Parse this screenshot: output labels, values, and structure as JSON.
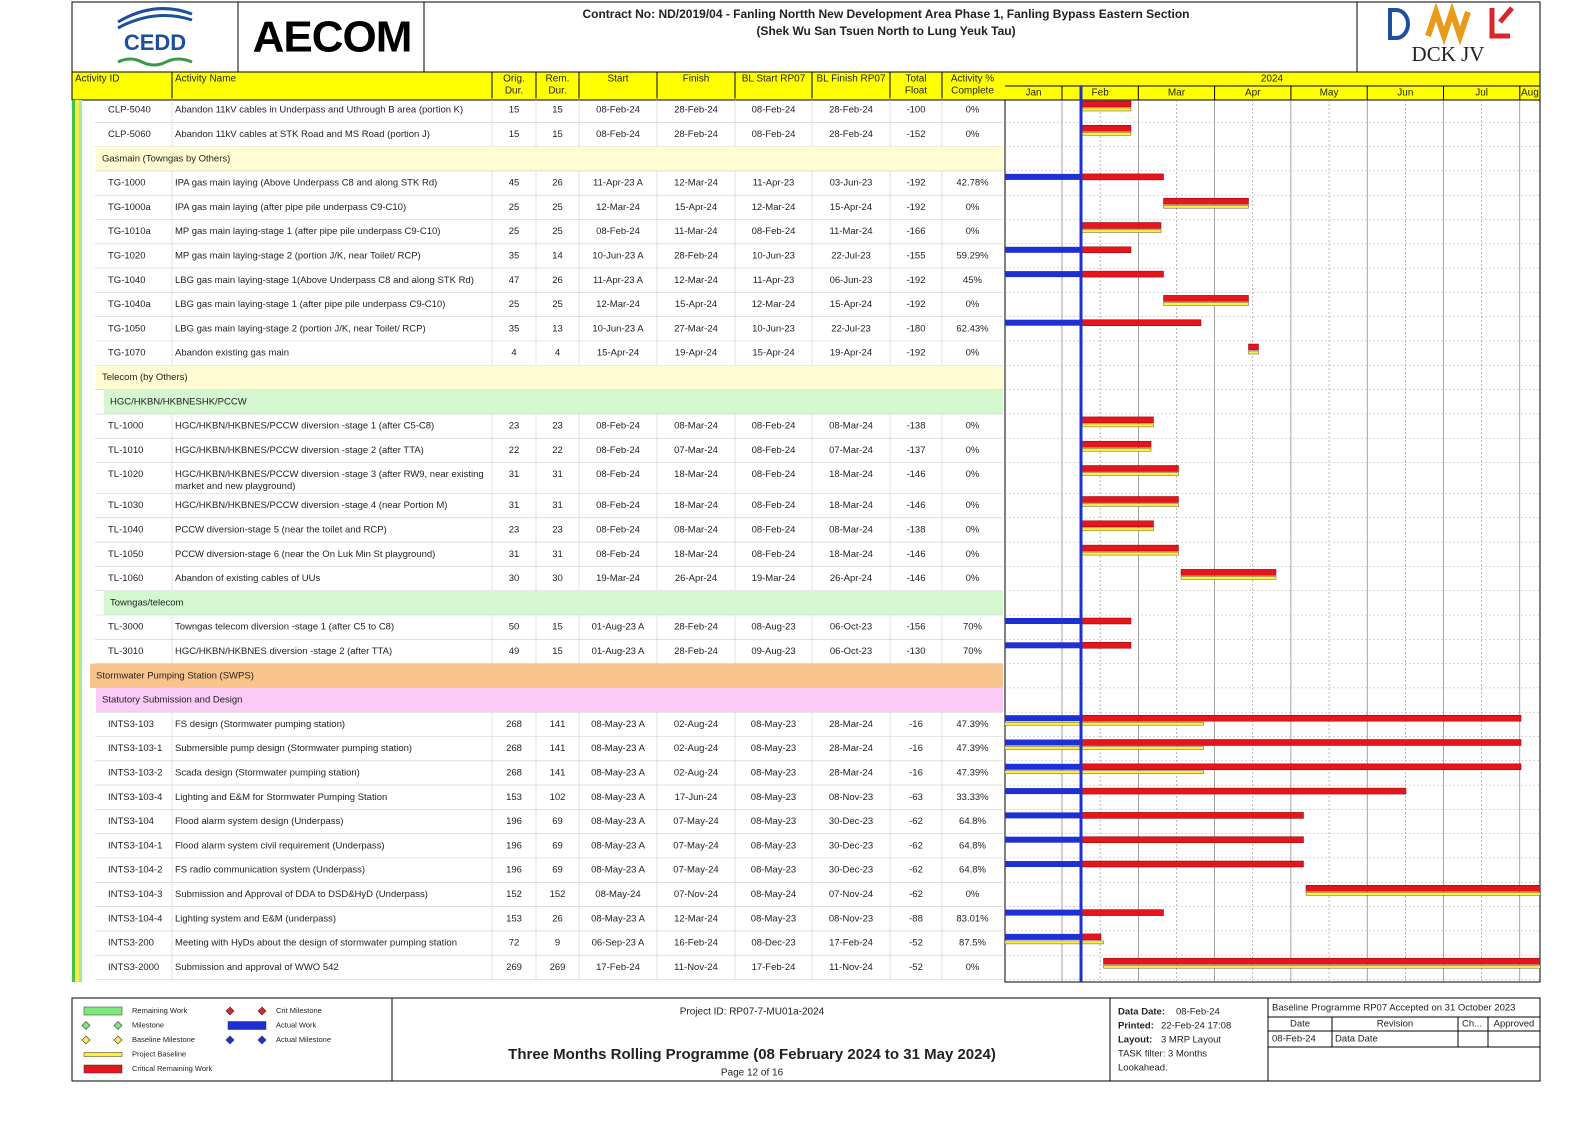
{
  "header": {
    "logo_left": "CEDD",
    "logo_mid": "AECOM",
    "title_line1": "Contract No: ND/2019/04 - Fanling Nortth New Development Area Phase 1, Fanling Bypass Eastern Section",
    "title_line2": "(Shek Wu San Tsuen North to Lung Yeuk Tau)",
    "logo_right": "DCK JV"
  },
  "table": {
    "columns": [
      [
        "Activity ID"
      ],
      [
        "Activity Name"
      ],
      [
        "Orig.",
        "Dur."
      ],
      [
        "Rem.",
        "Dur."
      ],
      [
        "Start"
      ],
      [
        "Finish"
      ],
      [
        "BL Start RP07"
      ],
      [
        "BL Finish RP07"
      ],
      [
        "Total",
        "Float"
      ],
      [
        "Activity %",
        "Complete"
      ]
    ],
    "rows": [
      {
        "cells": [
          "CLP-5040",
          "Abandon 11kV cables in Underpass and Uthrough B area (portion K)",
          "15",
          "15",
          "08-Feb-24",
          "28-Feb-24",
          "08-Feb-24",
          "28-Feb-24",
          "-100",
          "0%"
        ]
      },
      {
        "cells": [
          "CLP-5060",
          "Abandon 11kV cables at STK Road and MS Road (portion J)",
          "15",
          "15",
          "08-Feb-24",
          "28-Feb-24",
          "08-Feb-24",
          "28-Feb-24",
          "-152",
          "0%"
        ]
      },
      {
        "group": "Gasmain (Towngas by Others)",
        "color": "#fffbd2"
      },
      {
        "cells": [
          "TG-1000",
          "IPA gas main laying (Above Underpass C8 and along STK Rd)",
          "45",
          "26",
          "11-Apr-23 A",
          "12-Mar-24",
          "11-Apr-23",
          "03-Jun-23",
          "-192",
          "42.78%"
        ]
      },
      {
        "cells": [
          "TG-1000a",
          "IPA gas main laying (after pipe pile underpass C9-C10)",
          "25",
          "25",
          "12-Mar-24",
          "15-Apr-24",
          "12-Mar-24",
          "15-Apr-24",
          "-192",
          "0%"
        ]
      },
      {
        "cells": [
          "TG-1010a",
          "MP gas main laying-stage 1 (after pipe pile underpass C9-C10)",
          "25",
          "25",
          "08-Feb-24",
          "11-Mar-24",
          "08-Feb-24",
          "11-Mar-24",
          "-166",
          "0%"
        ]
      },
      {
        "cells": [
          "TG-1020",
          "MP gas main laying-stage 2 (portion J/K, near Toilet/ RCP)",
          "35",
          "14",
          "10-Jun-23 A",
          "28-Feb-24",
          "10-Jun-23",
          "22-Jul-23",
          "-155",
          "59.29%"
        ]
      },
      {
        "cells": [
          "TG-1040",
          "LBG gas main laying-stage 1(Above Underpass C8 and along STK Rd)",
          "47",
          "26",
          "11-Apr-23 A",
          "12-Mar-24",
          "11-Apr-23",
          "06-Jun-23",
          "-192",
          "45%"
        ]
      },
      {
        "cells": [
          "TG-1040a",
          "LBG gas main laying-stage 1 (after pipe pile underpass C9-C10)",
          "25",
          "25",
          "12-Mar-24",
          "15-Apr-24",
          "12-Mar-24",
          "15-Apr-24",
          "-192",
          "0%"
        ]
      },
      {
        "cells": [
          "TG-1050",
          "LBG gas main laying-stage 2 (portion J/K, near Toilet/ RCP)",
          "35",
          "13",
          "10-Jun-23 A",
          "27-Mar-24",
          "10-Jun-23",
          "22-Jul-23",
          "-180",
          "62.43%"
        ]
      },
      {
        "cells": [
          "TG-1070",
          "Abandon existing gas main",
          "4",
          "4",
          "15-Apr-24",
          "19-Apr-24",
          "15-Apr-24",
          "19-Apr-24",
          "-192",
          "0%"
        ]
      },
      {
        "group": "Telecom (by Others)",
        "color": "#fffbd2"
      },
      {
        "group": "HGC/HKBN/HKBNESHK/PCCW",
        "color": "#d4f7d0"
      },
      {
        "cells": [
          "TL-1000",
          "HGC/HKBN/HKBNES/PCCW diversion -stage 1 (after C5-C8)",
          "23",
          "23",
          "08-Feb-24",
          "08-Mar-24",
          "08-Feb-24",
          "08-Mar-24",
          "-138",
          "0%"
        ]
      },
      {
        "cells": [
          "TL-1010",
          "HGC/HKBN/HKBNES/PCCW diversion -stage 2 (after TTA)",
          "22",
          "22",
          "08-Feb-24",
          "07-Mar-24",
          "08-Feb-24",
          "07-Mar-24",
          "-137",
          "0%"
        ]
      },
      {
        "cells": [
          "TL-1020",
          [
            "HGC/HKBN/HKBNES/PCCW diversion -stage 3 (after RW9, near existing",
            "market and new playground)"
          ],
          "31",
          "31",
          "08-Feb-24",
          "18-Mar-24",
          "08-Feb-24",
          "18-Mar-24",
          "-146",
          "0%"
        ]
      },
      {
        "cells": [
          "TL-1030",
          "HGC/HKBN/HKBNES/PCCW diversion -stage 4 (near Portion M)",
          "31",
          "31",
          "08-Feb-24",
          "18-Mar-24",
          "08-Feb-24",
          "18-Mar-24",
          "-146",
          "0%"
        ]
      },
      {
        "cells": [
          "TL-1040",
          "PCCW diversion-stage 5 (near the toilet and RCP)",
          "23",
          "23",
          "08-Feb-24",
          "08-Mar-24",
          "08-Feb-24",
          "08-Mar-24",
          "-138",
          "0%"
        ]
      },
      {
        "cells": [
          "TL-1050",
          "PCCW diversion-stage 6 (near the On Luk Min St playground)",
          "31",
          "31",
          "08-Feb-24",
          "18-Mar-24",
          "08-Feb-24",
          "18-Mar-24",
          "-146",
          "0%"
        ]
      },
      {
        "cells": [
          "TL-1060",
          "Abandon of existing cables of UUs",
          "30",
          "30",
          "19-Mar-24",
          "26-Apr-24",
          "19-Mar-24",
          "26-Apr-24",
          "-146",
          "0%"
        ]
      },
      {
        "group": "Towngas/telecom",
        "color": "#d4f7d0"
      },
      {
        "cells": [
          "TL-3000",
          "Towngas telecom diversion -stage 1 (after C5 to C8)",
          "50",
          "15",
          "01-Aug-23 A",
          "28-Feb-24",
          "08-Aug-23",
          "06-Oct-23",
          "-156",
          "70%"
        ]
      },
      {
        "cells": [
          "TL-3010",
          "HGC/HKBN/HKBNES diversion -stage 2 (after TTA)",
          "49",
          "15",
          "01-Aug-23 A",
          "28-Feb-24",
          "09-Aug-23",
          "06-Oct-23",
          "-130",
          "70%"
        ]
      },
      {
        "group": "Stormwater Pumping Station (SWPS)",
        "color": "#f9c48c"
      },
      {
        "group": "Statutory Submission and Design",
        "color": "#f9cbf6"
      },
      {
        "cells": [
          "INTS3-103",
          "FS design (Stormwater pumping station)",
          "268",
          "141",
          "08-May-23 A",
          "02-Aug-24",
          "08-May-23",
          "28-Mar-24",
          "-16",
          "47.39%"
        ]
      },
      {
        "cells": [
          "INTS3-103-1",
          "Submersible pump design (Stormwater pumping station)",
          "268",
          "141",
          "08-May-23 A",
          "02-Aug-24",
          "08-May-23",
          "28-Mar-24",
          "-16",
          "47.39%"
        ]
      },
      {
        "cells": [
          "INTS3-103-2",
          "Scada design (Stormwater pumping station)",
          "268",
          "141",
          "08-May-23 A",
          "02-Aug-24",
          "08-May-23",
          "28-Mar-24",
          "-16",
          "47.39%"
        ]
      },
      {
        "cells": [
          "INTS3-103-4",
          "Lighting and E&M for Stormwater Pumping Station",
          "153",
          "102",
          "08-May-23 A",
          "17-Jun-24",
          "08-May-23",
          "08-Nov-23",
          "-63",
          "33.33%"
        ]
      },
      {
        "cells": [
          "INTS3-104",
          "Flood alarm system design (Underpass)",
          "196",
          "69",
          "08-May-23 A",
          "07-May-24",
          "08-May-23",
          "30-Dec-23",
          "-62",
          "64.8%"
        ]
      },
      {
        "cells": [
          "INTS3-104-1",
          "Flood alarm system civil requirement (Underpass)",
          "196",
          "69",
          "08-May-23 A",
          "07-May-24",
          "08-May-23",
          "30-Dec-23",
          "-62",
          "64.8%"
        ]
      },
      {
        "cells": [
          "INTS3-104-2",
          "FS radio communication system (Underpass)",
          "196",
          "69",
          "08-May-23 A",
          "07-May-24",
          "08-May-23",
          "30-Dec-23",
          "-62",
          "64.8%"
        ]
      },
      {
        "cells": [
          "INTS3-104-3",
          "Submission and Approval of DDA to DSD&HyD (Underpass)",
          "152",
          "152",
          "08-May-24",
          "07-Nov-24",
          "08-May-24",
          "07-Nov-24",
          "-62",
          "0%"
        ]
      },
      {
        "cells": [
          "INTS3-104-4",
          "Lighting system and E&M (underpass)",
          "153",
          "26",
          "08-May-23 A",
          "12-Mar-24",
          "08-May-23",
          "08-Nov-23",
          "-88",
          "83.01%"
        ]
      },
      {
        "cells": [
          "INTS3-200",
          "Meeting with HyDs about the design of stormwater pumping station",
          "72",
          "9",
          "06-Sep-23 A",
          "16-Feb-24",
          "08-Dec-23",
          "17-Feb-24",
          "-52",
          "87.5%"
        ]
      },
      {
        "cells": [
          "INTS3-2000",
          "Submission and approval of WWO 542",
          "269",
          "269",
          "17-Feb-24",
          "11-Nov-24",
          "17-Feb-24",
          "11-Nov-24",
          "-52",
          "0%"
        ]
      }
    ]
  },
  "timeline": {
    "year": "2024",
    "months": [
      "Jan",
      "Feb",
      "Mar",
      "Apr",
      "May",
      "Jun",
      "Jul",
      "Aug"
    ]
  },
  "legend": [
    "Remaining Work",
    "Milestone",
    "Baseline Milestone",
    "Project Baseline",
    "Critical Remaining Work",
    "Crit Milestone",
    "Actual Work",
    "Actual Milestone"
  ],
  "footer": {
    "project_id": "Project ID: RP07-7-MU01a-2024",
    "title": "Three Months Rolling Programme (08 February 2024 to 31 May 2024)",
    "page": "Page 12 of 16",
    "data_date_label": "Data Date:",
    "data_date": "08-Feb-24",
    "printed_label": "Printed:",
    "printed": "22-Feb-24 17:08",
    "layout_label": "Layout:",
    "layout": "3 MRP Layout",
    "filter": "TASK filter: 3 Months",
    "filter2": "Lookahead.",
    "baseline_note": "Baseline Programme RP07 Accepted on 31 October 2023",
    "rev_headers": [
      "Date",
      "Revision",
      "Ch...",
      "Approved"
    ],
    "rev_row": [
      "08-Feb-24",
      "Data Date"
    ]
  }
}
